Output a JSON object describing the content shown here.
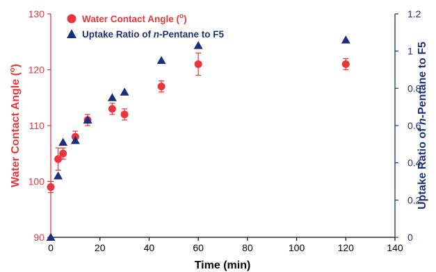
{
  "colors": {
    "left": "#e8363a",
    "right": "#1b2f7d",
    "axis": "#000000"
  },
  "chart_data": {
    "type": "scatter",
    "xlabel": "Time (min)",
    "ylabel_left": "Water Contact Angle (",
    "ylabel_left_degree": "o",
    "ylabel_left_close": ")",
    "ylabel_right_prefix": "Uptake Ratio of ",
    "ylabel_right_italic": "n",
    "ylabel_right_suffix": "-Pentane to F5",
    "xlim": [
      0,
      140
    ],
    "xticks": [
      0,
      20,
      40,
      60,
      80,
      100,
      120,
      140
    ],
    "ylim_left": [
      90,
      130
    ],
    "yticks_left": [
      90,
      100,
      110,
      120,
      130
    ],
    "ylim_right": [
      0,
      1.2
    ],
    "yticks_right": [
      "0",
      "0.2",
      "0.4",
      "0.6",
      "0.8",
      "1",
      "1.2"
    ],
    "grid": false,
    "legend_position": "top-left",
    "series": [
      {
        "name": "Water Contact Angle (",
        "name_degree": "o",
        "name_close": ")",
        "axis": "left",
        "marker": "circle",
        "x": [
          0,
          3,
          5,
          10,
          15,
          25,
          30,
          45,
          60,
          120
        ],
        "y": [
          99,
          104,
          105,
          108,
          111,
          113,
          112,
          117,
          121,
          121
        ],
        "err": [
          1,
          2,
          1,
          1,
          1,
          1,
          1,
          1,
          2,
          1
        ]
      },
      {
        "name_prefix": "Uptake Ratio of ",
        "name_italic": "n",
        "name_suffix": "-Pentane to F5",
        "axis": "right",
        "marker": "triangle",
        "x": [
          0,
          3,
          5,
          10,
          15,
          25,
          30,
          45,
          60,
          120
        ],
        "y": [
          0.0,
          0.33,
          0.51,
          0.52,
          0.63,
          0.75,
          0.78,
          0.95,
          1.03,
          1.06
        ]
      }
    ]
  }
}
